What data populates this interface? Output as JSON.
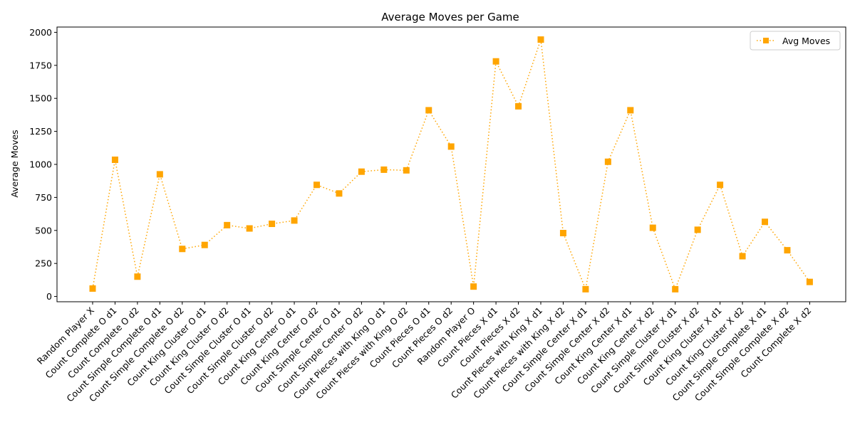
{
  "chart_data": {
    "type": "line",
    "title": "Average Moves per Game",
    "xlabel": "",
    "ylabel": "Average Moves",
    "ylim": [
      -40,
      2040
    ],
    "yticks": [
      0,
      250,
      500,
      750,
      1000,
      1250,
      1500,
      1750,
      2000
    ],
    "grid": false,
    "legend": {
      "placement": "top-right"
    },
    "categories": [
      "Random Player X",
      "Count Complete O d1",
      "Count Complete O d2",
      "Count Simple Complete O d1",
      "Count Simple Complete O d2",
      "Count King Cluster O d1",
      "Count King Cluster O d2",
      "Count Simple Cluster O d1",
      "Count Simple Cluster O d2",
      "Count King Center O d1",
      "Count King Center O d2",
      "Count Simple Center O d1",
      "Count Simple Center O d2",
      "Count Pieces with King O d1",
      "Count Pieces with King O d2",
      "Count Pieces O d1",
      "Count Pieces O d2",
      "Random Player O",
      "Count Pieces X d1",
      "Count Pieces X d2",
      "Count Pieces with King X d1",
      "Count Pieces with King X d2",
      "Count Simple Center X d1",
      "Count Simple Center X d2",
      "Count King Center X d1",
      "Count King Center X d2",
      "Count Simple Cluster X d1",
      "Count Simple Cluster X d2",
      "Count King Cluster X d1",
      "Count King Cluster X d2",
      "Count Simple Complete X d1",
      "Count Simple Complete X d2",
      "Count Complete X d2"
    ],
    "series": [
      {
        "name": "Avg Moves",
        "color": "#ffa500",
        "line_style": "dotted",
        "marker": "square",
        "values": [
          60,
          1035,
          150,
          925,
          360,
          390,
          540,
          515,
          550,
          575,
          845,
          780,
          945,
          960,
          955,
          1410,
          1135,
          75,
          1780,
          1440,
          1945,
          480,
          55,
          1020,
          1410,
          520,
          55,
          505,
          845,
          305,
          565,
          350,
          110
        ]
      }
    ]
  }
}
